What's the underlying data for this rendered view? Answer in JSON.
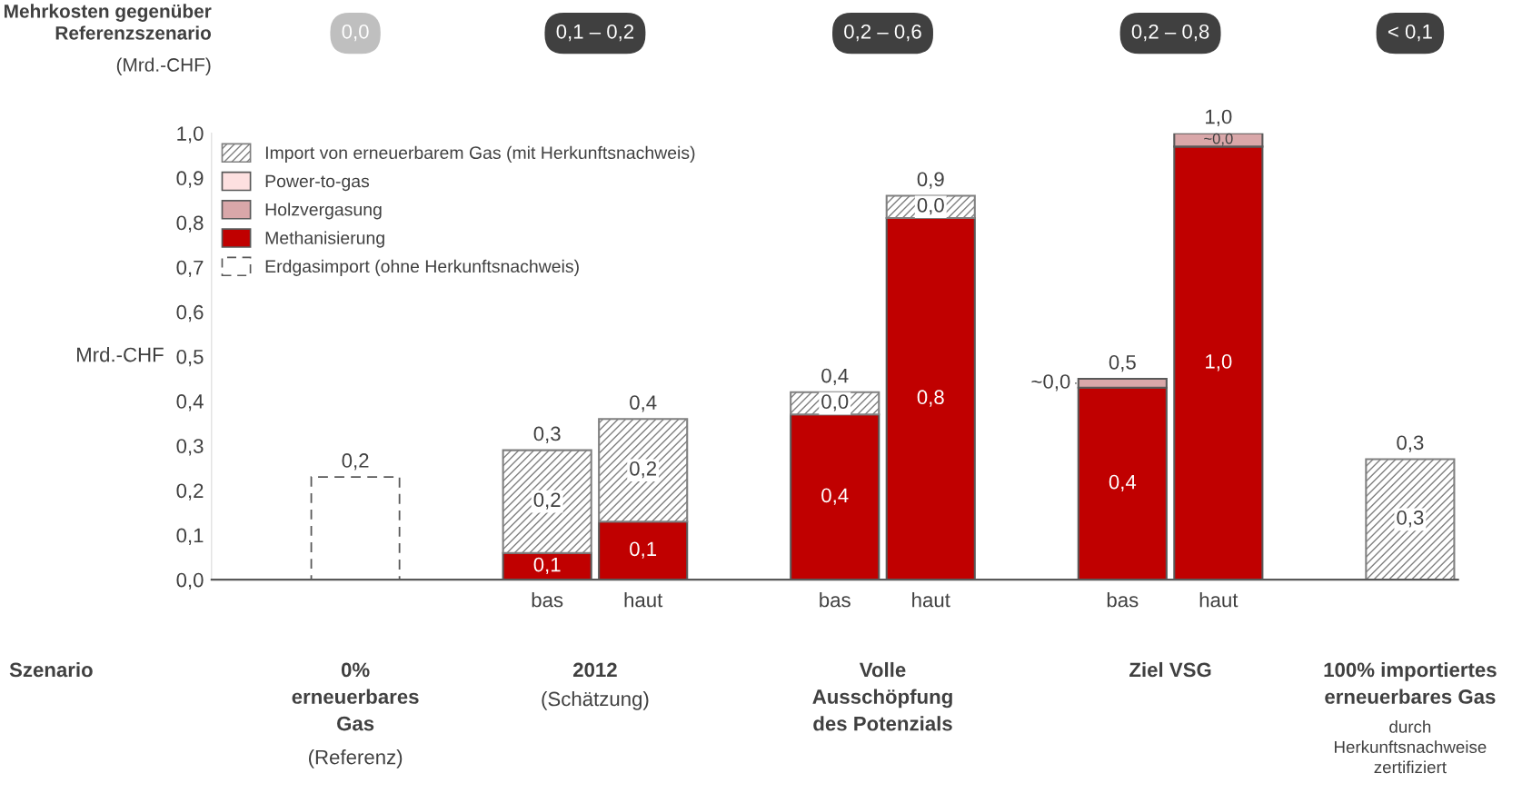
{
  "chart_data": {
    "type": "bar",
    "stacked": true,
    "categories": [
      null,
      null,
      "bas",
      "haut",
      null,
      "bas",
      "haut",
      null,
      "bas",
      "haut",
      null,
      null
    ],
    "series": [
      {
        "name": "Erdgasimport (ohne Herkunftsnachweis)",
        "color": "#ffffff",
        "line_style": "dashed",
        "values": [
          0.23,
          null,
          null,
          null,
          null,
          null,
          null,
          null,
          null,
          null,
          null,
          null
        ],
        "value_labels": [
          null,
          null,
          null,
          null,
          null,
          null,
          null,
          null,
          null,
          null,
          null,
          null
        ]
      },
      {
        "name": "Methanisierung",
        "color": "#c00000",
        "values": [
          null,
          null,
          0.06,
          0.13,
          null,
          0.37,
          0.81,
          null,
          0.43,
          0.97,
          null,
          null
        ],
        "value_labels": [
          null,
          null,
          "0,1",
          "0,1",
          null,
          "0,4",
          "0,8",
          null,
          "0,4",
          "1,0",
          null,
          null
        ]
      },
      {
        "name": "Holzvergasung",
        "color": "#d9a7a9",
        "values": [
          null,
          null,
          null,
          null,
          null,
          null,
          null,
          null,
          0.02,
          0.03,
          null,
          null
        ],
        "value_labels": [
          null,
          null,
          null,
          null,
          null,
          null,
          null,
          null,
          "~0,0",
          "~0,0",
          null,
          null
        ]
      },
      {
        "name": "Power-to-gas",
        "color": "#fde0e0",
        "values": [
          null,
          null,
          null,
          null,
          null,
          null,
          null,
          null,
          null,
          null,
          null,
          null
        ],
        "value_labels": [
          null,
          null,
          null,
          null,
          null,
          null,
          null,
          null,
          null,
          null,
          null,
          null
        ]
      },
      {
        "name": "Import von erneuerbarem Gas (mit Herkunftsnachweis)",
        "color": "#808080",
        "values": [
          null,
          null,
          0.23,
          0.23,
          null,
          0.05,
          0.05,
          null,
          null,
          null,
          null,
          0.27
        ],
        "value_labels": [
          null,
          null,
          "0,2",
          "0,2",
          null,
          "0,0",
          "0,0",
          null,
          null,
          null,
          null,
          "0,3"
        ]
      }
    ],
    "totals": [
      "0,2",
      null,
      "0,3",
      "0,4",
      null,
      "0,4",
      "0,9",
      null,
      "0,5",
      "1,0",
      null,
      "0,3"
    ],
    "ylabel": "Mrd.-CHF",
    "ylim": [
      0,
      1.0
    ],
    "yticks": [
      {
        "value": 0,
        "label": "0,0"
      },
      {
        "value": 0.1,
        "label": "0,1"
      },
      {
        "value": 0.2,
        "label": "0,2"
      },
      {
        "value": 0.3,
        "label": "0,3"
      },
      {
        "value": 0.4,
        "label": "0,4"
      },
      {
        "value": 0.5,
        "label": "0,5"
      },
      {
        "value": 0.6,
        "label": "0,6"
      },
      {
        "value": 0.7,
        "label": "0,7"
      },
      {
        "value": 0.8,
        "label": "0,8"
      },
      {
        "value": 0.9,
        "label": "0,9"
      },
      {
        "value": 1.0,
        "label": "1,0"
      }
    ],
    "legend": "top left",
    "grid": false,
    "annotations": [
      "Mehrkosten gegenüber\nReferenzszenario",
      "(Mrd.-CHF)",
      "0,0",
      "0,1 – 0,2",
      "0,2 – 0,6",
      "0,2 – 0,8",
      "< 0,1",
      "Szenario",
      "0%\nerneuerbares\nGas",
      "(Referenz)",
      "2012",
      "(Schätzung)",
      "Volle\nAusschöpfung\ndes Potenzials",
      "Ziel VSG",
      "100% importiertes\nerneuerbares Gas",
      "durch\nHerkunftsnachweise\nzertifiziert"
    ]
  }
}
